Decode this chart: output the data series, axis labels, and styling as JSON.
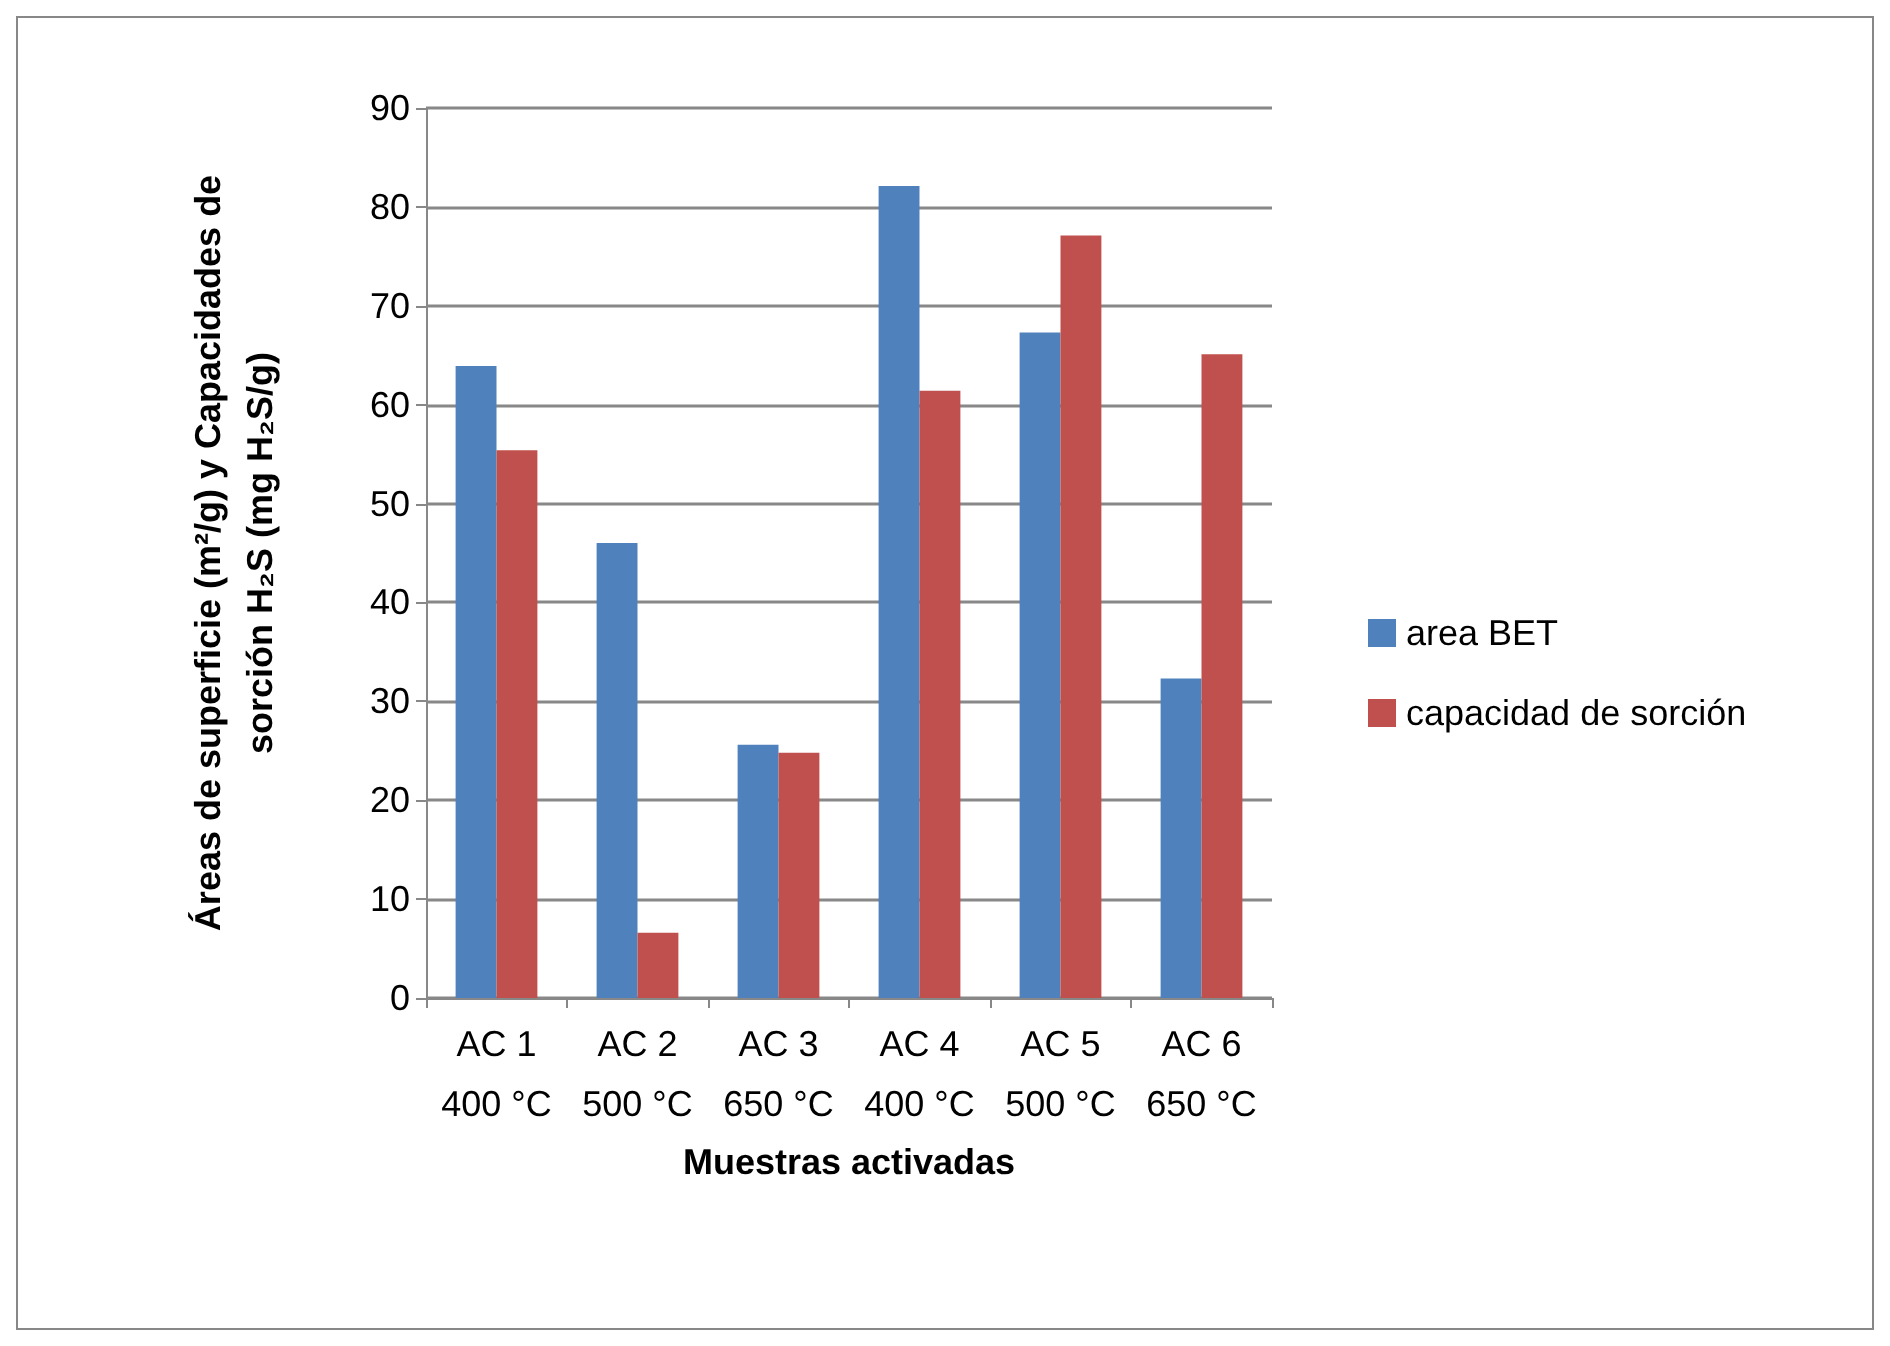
{
  "chart_data": {
    "type": "bar",
    "xlabel": "Muestras activadas",
    "ylabel": "Áreas de superficie (m²/g) y Capacidades de sorción H₂S (mg H₂S/g)",
    "categories": [
      "AC 1\n400 °C",
      "AC 2\n500 °C",
      "AC 3\n650 °C",
      "AC 4\n400 °C",
      "AC 5\n500 °C",
      "AC 6\n650 °C"
    ],
    "series": [
      {
        "name": "area BET",
        "color": "#4f81bd",
        "values": [
          63.9,
          46.0,
          25.6,
          82.1,
          67.3,
          32.3
        ]
      },
      {
        "name": "capacidad de sorción",
        "color": "#c0504d",
        "values": [
          55.4,
          6.6,
          24.8,
          61.4,
          77.1,
          65.1
        ]
      }
    ],
    "ylim": [
      0,
      90
    ],
    "yticks": [
      0,
      10,
      20,
      30,
      40,
      50,
      60,
      70,
      80,
      90
    ],
    "grid": "y",
    "legend": "right"
  }
}
